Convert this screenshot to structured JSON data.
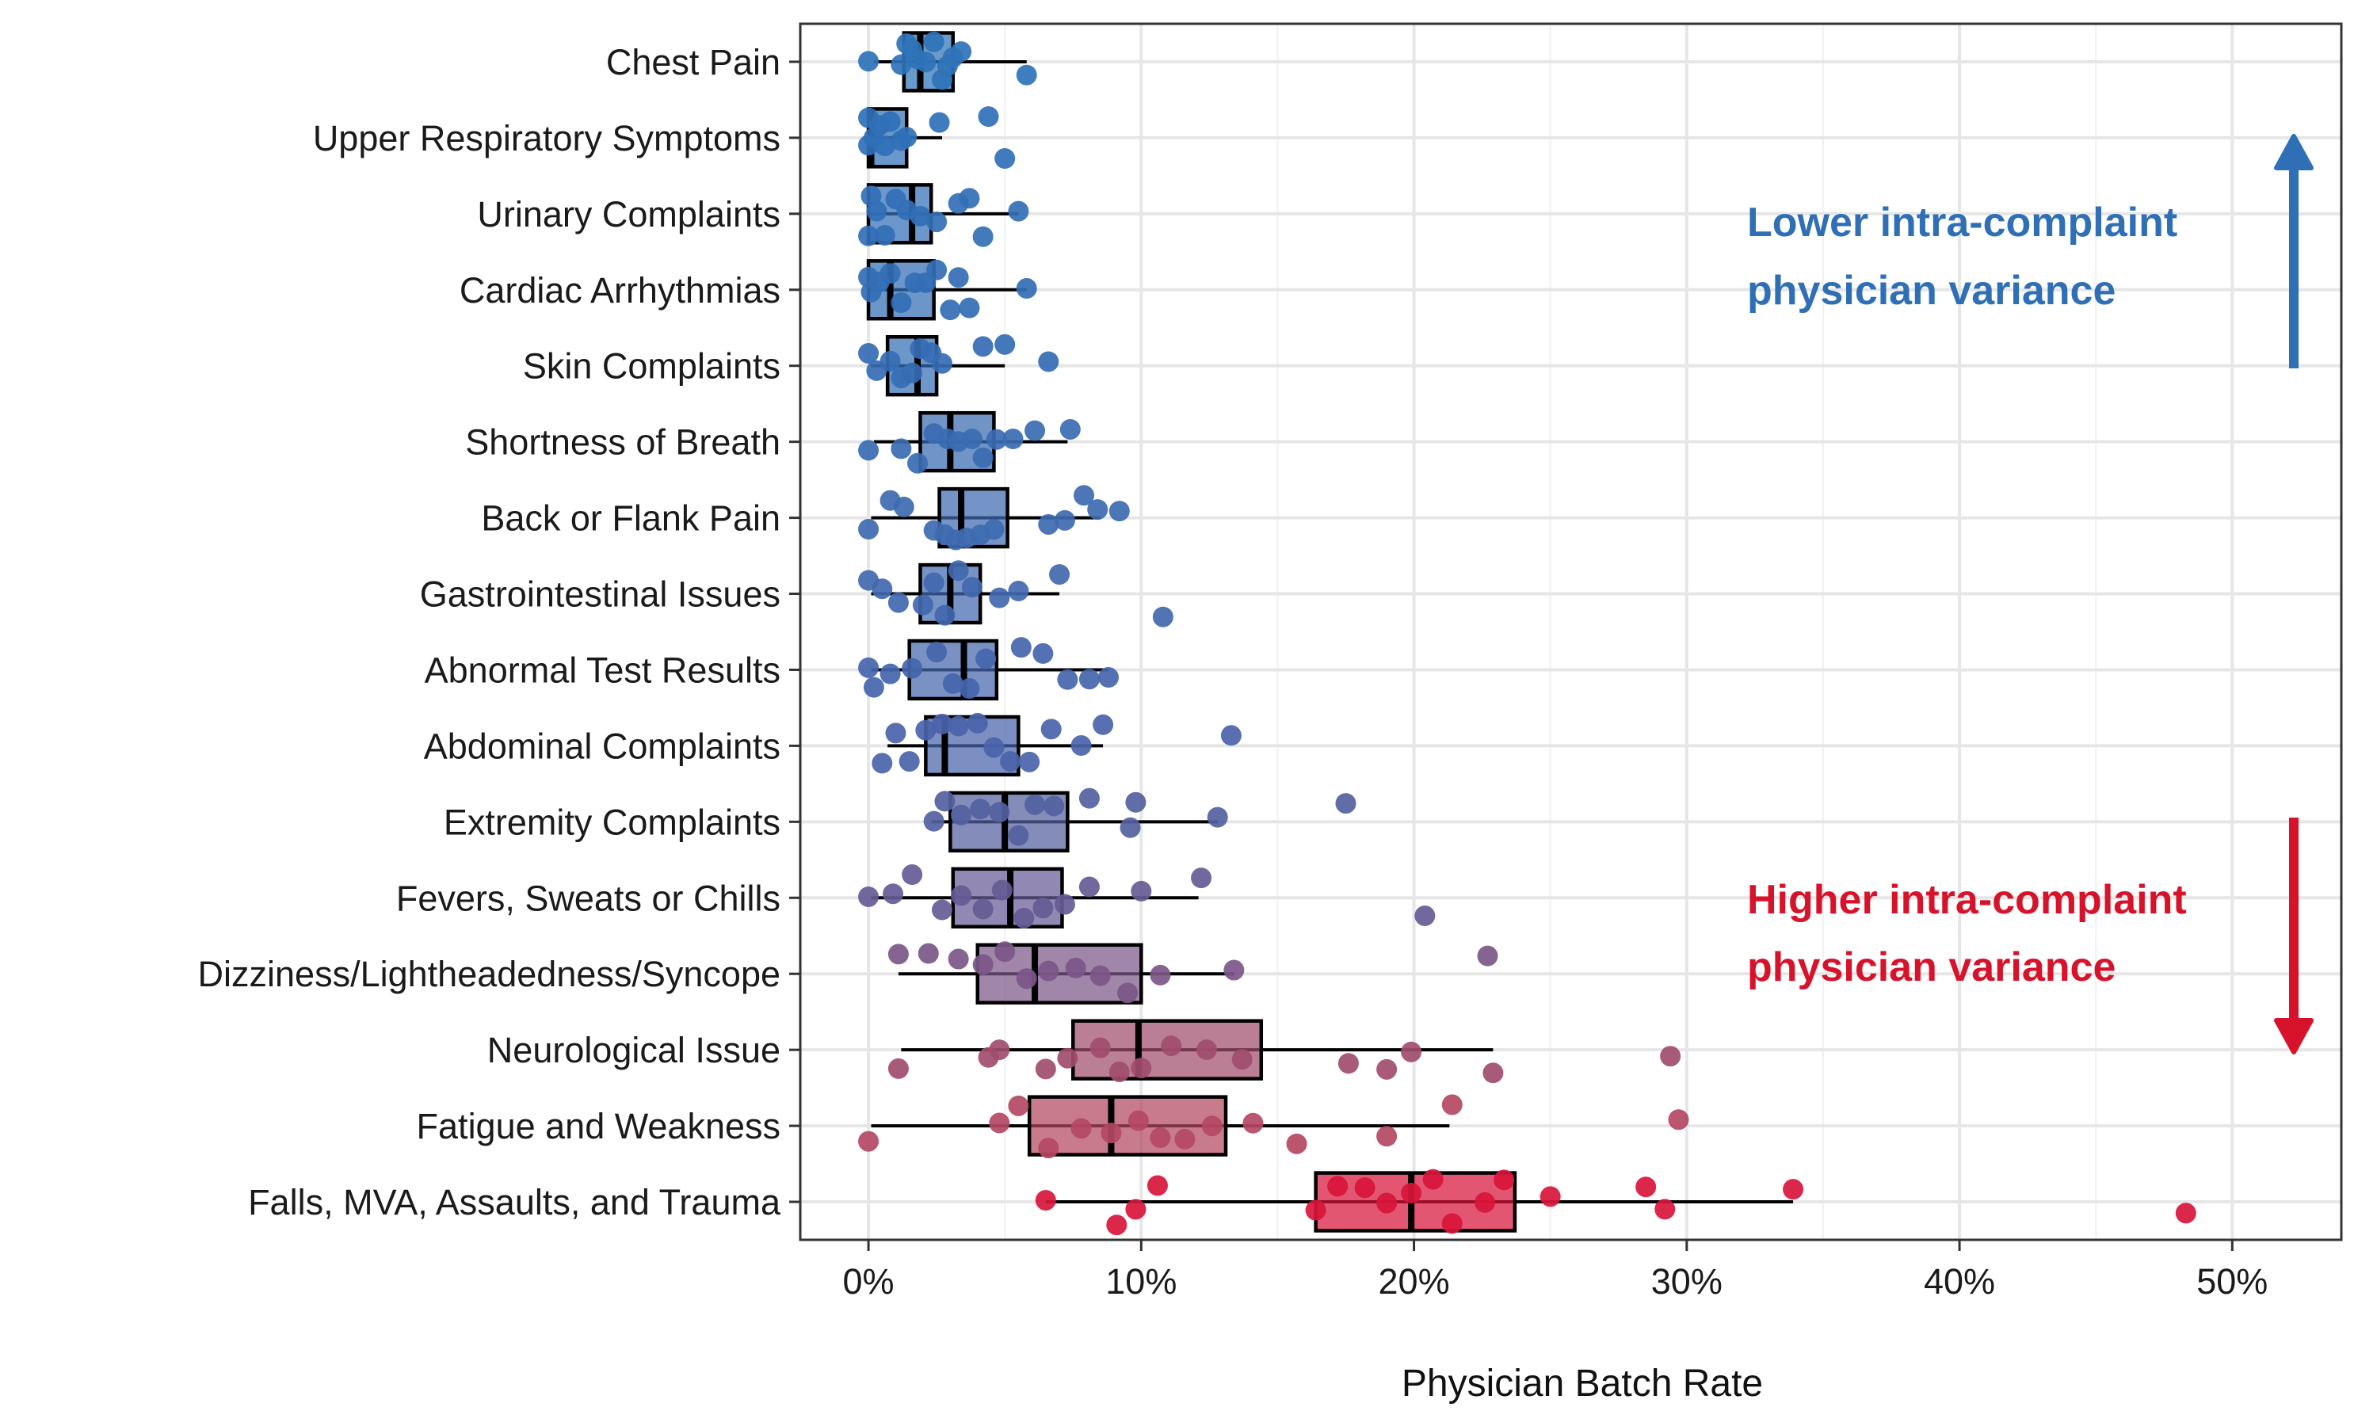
{
  "chart_data": {
    "type": "box",
    "title": "",
    "xlabel": "Physician Batch Rate",
    "ylabel": "",
    "xlim": [
      -0.025,
      0.54
    ],
    "x_ticks": [
      0,
      0.1,
      0.2,
      0.3,
      0.4,
      0.5
    ],
    "x_tick_labels": [
      "0%",
      "10%",
      "20%",
      "30%",
      "40%",
      "50%"
    ],
    "grid": true,
    "color_low": "#2f6fb5",
    "color_high": "#d7132c",
    "categories": [
      "Chest Pain",
      "Upper Respiratory Symptoms",
      "Urinary Complaints",
      "Cardiac Arrhythmias",
      "Skin Complaints",
      "Shortness of Breath",
      "Back or Flank Pain",
      "Gastrointestinal Issues",
      "Abnormal Test Results",
      "Abdominal Complaints",
      "Extremity Complaints",
      "Fevers, Sweats or Chills",
      "Dizziness/Lightheadedness/Syncope",
      "Neurological Issue",
      "Fatigue and Weakness",
      "Falls, MVA, Assaults, and Trauma"
    ],
    "boxes": [
      {
        "whisker_low": 0.002,
        "q1": 0.013,
        "median": 0.019,
        "q3": 0.031,
        "whisker_high": 0.058,
        "color": "#2f73b8",
        "points": [
          0,
          0.012,
          0.014,
          0.016,
          0.018,
          0.021,
          0.024,
          0.027,
          0.029,
          0.031,
          0.034,
          0.058
        ]
      },
      {
        "whisker_low": 0,
        "q1": 0,
        "median": 0.001,
        "q3": 0.014,
        "whisker_high": 0.027,
        "color": "#3070b7",
        "points": [
          0,
          0,
          0.002,
          0.004,
          0.006,
          0.008,
          0.012,
          0.014,
          0.026,
          0.044,
          0.05
        ]
      },
      {
        "whisker_low": 0,
        "q1": 0,
        "median": 0.016,
        "q3": 0.023,
        "whisker_high": 0.055,
        "color": "#326fb6",
        "points": [
          0,
          0.001,
          0.003,
          0.006,
          0.01,
          0.014,
          0.019,
          0.025,
          0.033,
          0.037,
          0.042,
          0.055
        ]
      },
      {
        "whisker_low": 0,
        "q1": 0,
        "median": 0.008,
        "q3": 0.024,
        "whisker_high": 0.058,
        "color": "#336eb5",
        "points": [
          0,
          0.001,
          0.004,
          0.008,
          0.012,
          0.017,
          0.021,
          0.025,
          0.03,
          0.033,
          0.037,
          0.058
        ]
      },
      {
        "whisker_low": 0.001,
        "q1": 0.007,
        "median": 0.018,
        "q3": 0.025,
        "whisker_high": 0.05,
        "color": "#356db4",
        "points": [
          0,
          0.003,
          0.008,
          0.012,
          0.016,
          0.019,
          0.023,
          0.027,
          0.042,
          0.05,
          0.066
        ]
      },
      {
        "whisker_low": 0.002,
        "q1": 0.019,
        "median": 0.03,
        "q3": 0.046,
        "whisker_high": 0.073,
        "color": "#3a6bb2",
        "points": [
          0,
          0.012,
          0.018,
          0.024,
          0.029,
          0.033,
          0.038,
          0.042,
          0.047,
          0.053,
          0.061,
          0.074
        ]
      },
      {
        "whisker_low": 0.001,
        "q1": 0.026,
        "median": 0.034,
        "q3": 0.051,
        "whisker_high": 0.085,
        "color": "#3e6ab0",
        "points": [
          0,
          0.008,
          0.013,
          0.024,
          0.028,
          0.032,
          0.036,
          0.041,
          0.046,
          0.066,
          0.072,
          0.079,
          0.084,
          0.092
        ]
      },
      {
        "whisker_low": 0.001,
        "q1": 0.019,
        "median": 0.03,
        "q3": 0.041,
        "whisker_high": 0.07,
        "color": "#4268ae",
        "points": [
          0,
          0.005,
          0.011,
          0.02,
          0.024,
          0.028,
          0.033,
          0.038,
          0.048,
          0.055,
          0.07,
          0.108
        ]
      },
      {
        "whisker_low": 0.001,
        "q1": 0.015,
        "median": 0.035,
        "q3": 0.047,
        "whisker_high": 0.088,
        "color": "#4566ac",
        "points": [
          0,
          0.002,
          0.008,
          0.016,
          0.025,
          0.031,
          0.037,
          0.043,
          0.056,
          0.064,
          0.073,
          0.081,
          0.088
        ]
      },
      {
        "whisker_low": 0.007,
        "q1": 0.021,
        "median": 0.028,
        "q3": 0.055,
        "whisker_high": 0.086,
        "color": "#4a64aa",
        "points": [
          0.005,
          0.01,
          0.015,
          0.021,
          0.027,
          0.033,
          0.04,
          0.046,
          0.052,
          0.059,
          0.067,
          0.078,
          0.086,
          0.133
        ]
      },
      {
        "whisker_low": 0.023,
        "q1": 0.03,
        "median": 0.05,
        "q3": 0.073,
        "whisker_high": 0.128,
        "color": "#5461a0",
        "points": [
          0.024,
          0.028,
          0.034,
          0.041,
          0.048,
          0.055,
          0.061,
          0.068,
          0.081,
          0.096,
          0.098,
          0.128,
          0.175
        ]
      },
      {
        "whisker_low": 0.001,
        "q1": 0.031,
        "median": 0.052,
        "q3": 0.071,
        "whisker_high": 0.121,
        "color": "#665b95",
        "points": [
          0,
          0.009,
          0.016,
          0.027,
          0.034,
          0.042,
          0.049,
          0.057,
          0.064,
          0.072,
          0.081,
          0.1,
          0.122,
          0.204
        ]
      },
      {
        "whisker_low": 0.011,
        "q1": 0.04,
        "median": 0.061,
        "q3": 0.1,
        "whisker_high": 0.134,
        "color": "#7b5788",
        "points": [
          0.011,
          0.022,
          0.033,
          0.042,
          0.05,
          0.058,
          0.066,
          0.076,
          0.085,
          0.095,
          0.107,
          0.134,
          0.227
        ]
      },
      {
        "whisker_low": 0.012,
        "q1": 0.075,
        "median": 0.099,
        "q3": 0.144,
        "whisker_high": 0.229,
        "color": "#a14d6c",
        "points": [
          0.011,
          0.044,
          0.048,
          0.065,
          0.073,
          0.085,
          0.092,
          0.1,
          0.111,
          0.124,
          0.137,
          0.176,
          0.19,
          0.199,
          0.229,
          0.294
        ]
      },
      {
        "whisker_low": 0.001,
        "q1": 0.059,
        "median": 0.089,
        "q3": 0.131,
        "whisker_high": 0.213,
        "color": "#b44863",
        "points": [
          0,
          0.048,
          0.055,
          0.066,
          0.078,
          0.089,
          0.099,
          0.107,
          0.116,
          0.126,
          0.141,
          0.157,
          0.19,
          0.214,
          0.297
        ]
      },
      {
        "whisker_low": 0.065,
        "q1": 0.164,
        "median": 0.199,
        "q3": 0.237,
        "whisker_high": 0.339,
        "color": "#d8153a",
        "points": [
          0.065,
          0.091,
          0.098,
          0.106,
          0.164,
          0.172,
          0.182,
          0.19,
          0.199,
          0.207,
          0.214,
          0.226,
          0.233,
          0.25,
          0.285,
          0.292,
          0.339,
          0.483
        ]
      }
    ]
  },
  "annotations": {
    "lower_line1": "Lower intra-complaint",
    "lower_line2": "physician variance",
    "higher_line1": "Higher intra-complaint",
    "higher_line2": "physician variance"
  }
}
